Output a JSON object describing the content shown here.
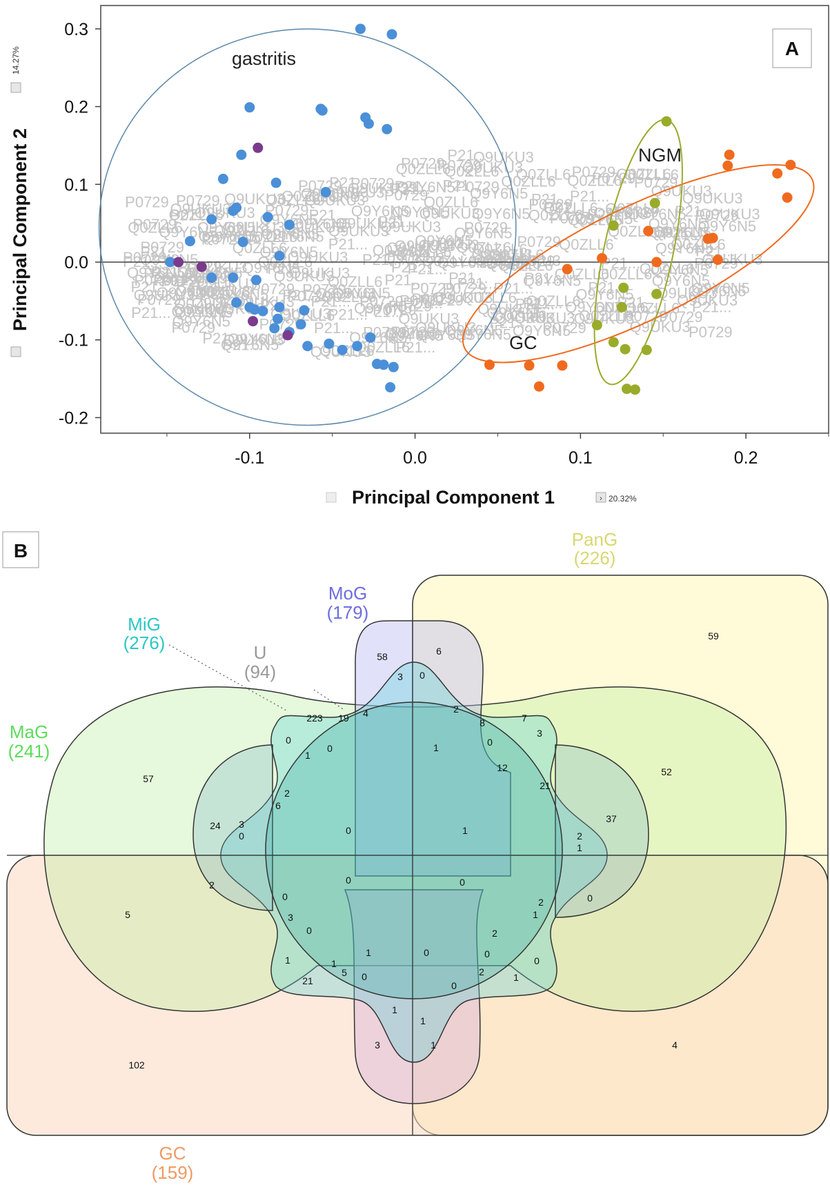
{
  "panel_a": {
    "label": "A",
    "xlabel": "Principal Component 1",
    "ylabel": "Principal Component 2",
    "x_variance": "20.32%",
    "y_variance": "14.27%",
    "group_labels": [
      "gastritis",
      "NGM",
      "GC"
    ],
    "colors": {
      "gastritis": "#4a8fd8",
      "purple": "#7b3b8c",
      "NGM": "#9aab2a",
      "GC": "#f06a1e",
      "background_labels": "#c8c8c8"
    },
    "background_label_fragments": [
      "Q9Y6N5",
      "Q9UKU3",
      "P0729",
      "P21...",
      "Q0ZLL6"
    ]
  },
  "panel_b": {
    "label": "B",
    "sets": [
      {
        "name": "PanG",
        "count": "(226)",
        "color": "#d9d770"
      },
      {
        "name": "MoG",
        "count": "(179)",
        "color": "#6d6de0"
      },
      {
        "name": "MiG",
        "count": "(276)",
        "color": "#2cc6c6"
      },
      {
        "name": "U",
        "count": "(94)",
        "color": "#9a9a9a"
      },
      {
        "name": "MaG",
        "count": "(241)",
        "color": "#5cdc5c"
      },
      {
        "name": "GC",
        "count": "(159)",
        "color": "#ee9a64"
      }
    ],
    "region_counts": [
      "59",
      "58",
      "6",
      "3",
      "0",
      "223",
      "19",
      "4",
      "2",
      "8",
      "7",
      "3",
      "0",
      "0",
      "0",
      "1",
      "1",
      "12",
      "21",
      "57",
      "52",
      "2",
      "6",
      "24",
      "37",
      "3",
      "0",
      "0",
      "1",
      "2",
      "1",
      "2",
      "0",
      "0",
      "5",
      "0",
      "3",
      "2",
      "0",
      "1",
      "0",
      "2",
      "1",
      "0",
      "0",
      "1",
      "1",
      "5",
      "0",
      "0",
      "2",
      "1",
      "21",
      "0",
      "1",
      "1",
      "3",
      "1",
      "102",
      "4"
    ]
  },
  "chart_data": {
    "type": "scatter",
    "title": "",
    "xlabel": "Principal Component 1",
    "ylabel": "Principal Component 2",
    "xlim": [
      -0.19,
      0.25
    ],
    "ylim": [
      -0.22,
      0.33
    ],
    "xticks": [
      -0.1,
      0.0,
      0.1,
      0.2
    ],
    "yticks": [
      -0.2,
      -0.1,
      0.0,
      0.1,
      0.2,
      0.3
    ],
    "grid": false,
    "series": [
      {
        "name": "gastritis",
        "color": "#4a8fd8",
        "x": [
          -0.033,
          -0.014,
          -0.1,
          -0.057,
          -0.056,
          -0.03,
          -0.028,
          -0.017,
          -0.105,
          -0.116,
          -0.084,
          -0.054,
          -0.11,
          -0.108,
          -0.123,
          -0.089,
          -0.076,
          -0.136,
          -0.104,
          -0.082,
          -0.148,
          -0.123,
          -0.11,
          -0.096,
          -0.108,
          -0.1,
          -0.097,
          -0.092,
          -0.082,
          -0.067,
          -0.083,
          -0.069,
          -0.085,
          -0.076,
          -0.065,
          -0.052,
          -0.044,
          -0.035,
          -0.027,
          -0.019,
          -0.023,
          -0.013,
          -0.015
        ],
        "y": [
          0.3,
          0.293,
          0.199,
          0.197,
          0.195,
          0.186,
          0.178,
          0.171,
          0.138,
          0.107,
          0.102,
          0.09,
          0.066,
          0.07,
          0.055,
          0.058,
          0.048,
          0.027,
          0.026,
          0.008,
          0.0,
          -0.02,
          -0.02,
          -0.023,
          -0.052,
          -0.058,
          -0.061,
          -0.063,
          -0.058,
          -0.062,
          -0.073,
          -0.08,
          -0.085,
          -0.09,
          -0.108,
          -0.105,
          -0.113,
          -0.108,
          -0.097,
          -0.132,
          -0.131,
          -0.135,
          -0.161
        ]
      },
      {
        "name": "",
        "color": "#7b3b8c",
        "x": [
          -0.095,
          -0.143,
          -0.129,
          -0.098,
          -0.077
        ],
        "y": [
          0.147,
          0.0,
          -0.006,
          -0.076,
          -0.094
        ]
      },
      {
        "name": "NGM",
        "color": "#9aab2a",
        "x": [
          0.152,
          0.145,
          0.12,
          0.126,
          0.146,
          0.125,
          0.11,
          0.12,
          0.127,
          0.14,
          0.128,
          0.133
        ],
        "y": [
          0.181,
          0.076,
          0.047,
          -0.033,
          -0.041,
          -0.058,
          -0.081,
          -0.103,
          -0.112,
          -0.113,
          -0.163,
          -0.164
        ],
        "hull_x": [
          0.152,
          0.165,
          0.16,
          0.147,
          0.13,
          0.113,
          0.105,
          0.11,
          0.13,
          0.145
        ],
        "hull_y": [
          0.2,
          0.15,
          0.06,
          -0.06,
          -0.17,
          -0.18,
          -0.12,
          0.0,
          0.12,
          0.18
        ]
      },
      {
        "name": "GC",
        "color": "#f06a1e",
        "x": [
          0.19,
          0.189,
          0.227,
          0.219,
          0.225,
          0.141,
          0.177,
          0.18,
          0.113,
          0.146,
          0.183,
          0.092,
          0.045,
          0.069,
          0.089,
          0.075
        ],
        "y": [
          0.138,
          0.124,
          0.125,
          0.114,
          0.083,
          0.04,
          0.03,
          0.031,
          0.005,
          0.0,
          0.003,
          -0.009,
          -0.132,
          -0.133,
          -0.133,
          -0.16
        ]
      }
    ]
  }
}
